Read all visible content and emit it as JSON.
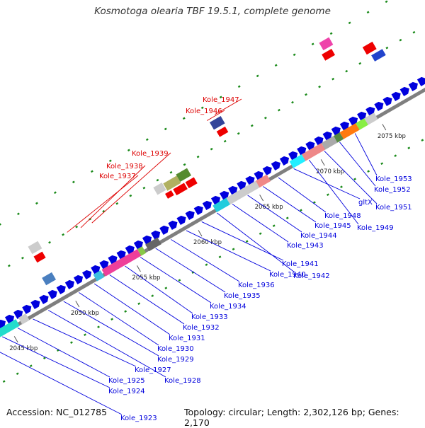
{
  "title": "Kosmotoga olearia TBF 19.5.1, complete genome",
  "footer": {
    "accession": "Accession: NC_012785",
    "info": "Topology: circular; Length: 2,302,126 bp; Genes: 2,170"
  },
  "colors": {
    "backbone": "#7f7f7f",
    "cds": "#0000dd",
    "rna_ticks": "#1a8a1a",
    "label_red": "#dd0000",
    "label_blue": "#0000dd"
  },
  "kbp_ticks": [
    "2045 kbp",
    "2050 kbp",
    "2055 kbp",
    "2060 kbp",
    "2065 kbp",
    "2070 kbp",
    "2075 kbp"
  ],
  "gene_labels_red": [
    "Kole_1937",
    "Kole_1938",
    "Kole_1939",
    "Kole_1946",
    "Kole_1947"
  ],
  "gene_labels_blue": [
    "Kole_1923",
    "Kole_1924",
    "Kole_1925",
    "Kole_1927",
    "Kole_1928",
    "Kole_1929",
    "Kole_1930",
    "Kole_1931",
    "Kole_1932",
    "Kole_1933",
    "Kole_1934",
    "Kole_1935",
    "Kole_1936",
    "Kole_1940",
    "Kole_1941",
    "Kole_1942",
    "Kole_1943",
    "Kole_1944",
    "Kole_1945",
    "Kole_1948",
    "gltX",
    "Kole_1949",
    "Kole_1951",
    "Kole_1952",
    "Kole_1953"
  ]
}
